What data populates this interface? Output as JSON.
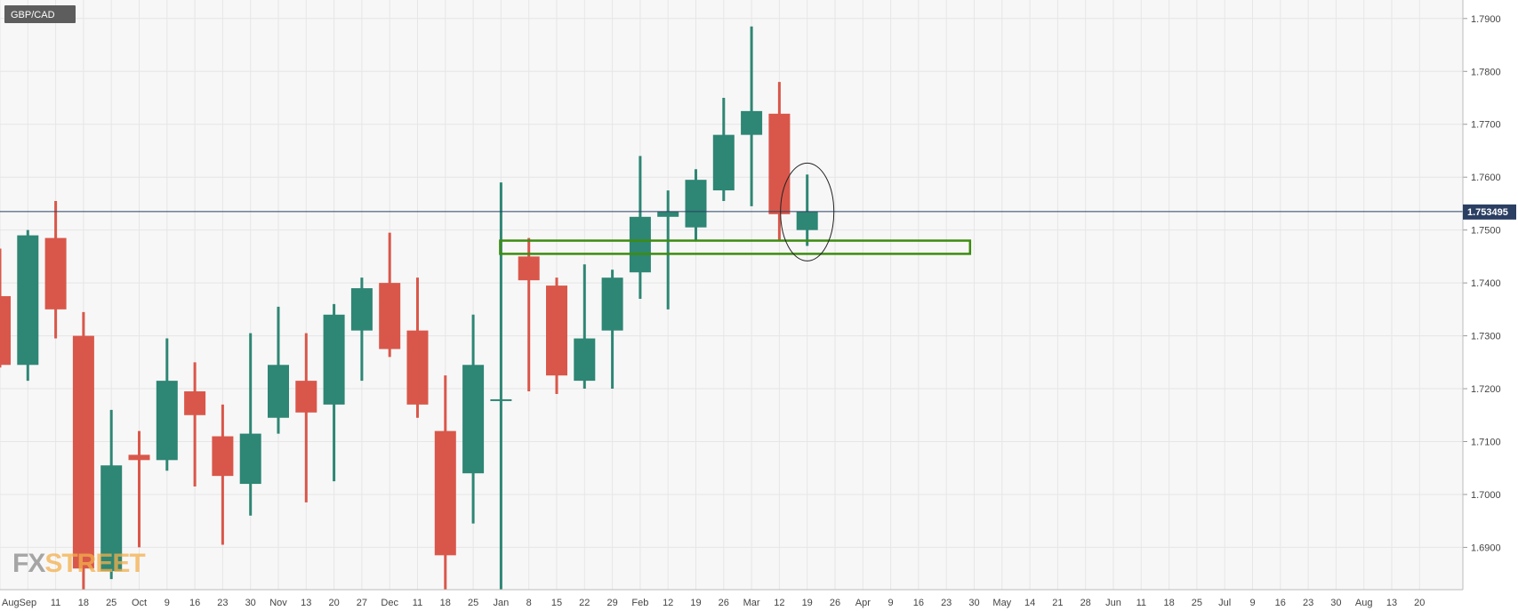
{
  "symbol": "GBP/CAD",
  "current_price_label": "1.753495",
  "logo": {
    "part1": "FX",
    "part2": "STREET"
  },
  "colors": {
    "up": "#2e8674",
    "down": "#d9574a",
    "grid": "#e6e6e6",
    "plot_bg": "#f7f7f7",
    "price_line": "#2b3f63",
    "zone": "#3c8c10",
    "symbol_bg": "#5d5d5d",
    "axis_text": "#444444"
  },
  "chart_data": {
    "type": "candlestick",
    "timeframe": "weekly",
    "ylim": [
      1.682,
      1.7935
    ],
    "y_ticks": [
      "1.6900",
      "1.7000",
      "1.7100",
      "1.7200",
      "1.7300",
      "1.7400",
      "1.7500",
      "1.7600",
      "1.7700",
      "1.7800",
      "1.7900"
    ],
    "x_labels": [
      "Aug",
      "Sep",
      "11",
      "18",
      "25",
      "Oct",
      "9",
      "16",
      "23",
      "30",
      "Nov",
      "13",
      "20",
      "27",
      "Dec",
      "11",
      "18",
      "25",
      "Jan",
      "8",
      "15",
      "22",
      "29",
      "Feb",
      "12",
      "19",
      "26",
      "Mar",
      "12",
      "19",
      "26",
      "Apr",
      "9",
      "16",
      "23",
      "30",
      "May",
      "14",
      "21",
      "28",
      "Jun",
      "11",
      "18",
      "25",
      "Jul",
      "9",
      "16",
      "23",
      "30",
      "Aug",
      "13",
      "20"
    ],
    "candles": [
      {
        "o": 1.7375,
        "h": 1.7465,
        "l": 1.724,
        "c": 1.7245
      },
      {
        "o": 1.7245,
        "h": 1.75,
        "l": 1.7215,
        "c": 1.749
      },
      {
        "o": 1.7485,
        "h": 1.7555,
        "l": 1.7295,
        "c": 1.735
      },
      {
        "o": 1.73,
        "h": 1.7345,
        "l": 1.682,
        "c": 1.686
      },
      {
        "o": 1.6855,
        "h": 1.716,
        "l": 1.684,
        "c": 1.7055
      },
      {
        "o": 1.7075,
        "h": 1.712,
        "l": 1.69,
        "c": 1.7065
      },
      {
        "o": 1.7065,
        "h": 1.7295,
        "l": 1.7045,
        "c": 1.7215
      },
      {
        "o": 1.7195,
        "h": 1.725,
        "l": 1.7015,
        "c": 1.715
      },
      {
        "o": 1.711,
        "h": 1.717,
        "l": 1.6905,
        "c": 1.7035
      },
      {
        "o": 1.702,
        "h": 1.7305,
        "l": 1.696,
        "c": 1.7115
      },
      {
        "o": 1.7145,
        "h": 1.7355,
        "l": 1.7115,
        "c": 1.7245
      },
      {
        "o": 1.7215,
        "h": 1.7305,
        "l": 1.6985,
        "c": 1.7155
      },
      {
        "o": 1.717,
        "h": 1.736,
        "l": 1.7025,
        "c": 1.734
      },
      {
        "o": 1.731,
        "h": 1.741,
        "l": 1.7215,
        "c": 1.739
      },
      {
        "o": 1.74,
        "h": 1.7495,
        "l": 1.726,
        "c": 1.7275
      },
      {
        "o": 1.731,
        "h": 1.741,
        "l": 1.7145,
        "c": 1.717
      },
      {
        "o": 1.712,
        "h": 1.7225,
        "l": 1.682,
        "c": 1.6885
      },
      {
        "o": 1.704,
        "h": 1.734,
        "l": 1.6945,
        "c": 1.7245
      },
      {
        "o": 1.718,
        "h": 1.759,
        "l": 1.682,
        "c": 1.718
      },
      {
        "o": 1.745,
        "h": 1.7485,
        "l": 1.7195,
        "c": 1.7405
      },
      {
        "o": 1.7395,
        "h": 1.741,
        "l": 1.719,
        "c": 1.7225
      },
      {
        "o": 1.7215,
        "h": 1.7435,
        "l": 1.72,
        "c": 1.7295
      },
      {
        "o": 1.731,
        "h": 1.7425,
        "l": 1.72,
        "c": 1.741
      },
      {
        "o": 1.742,
        "h": 1.764,
        "l": 1.737,
        "c": 1.7525
      },
      {
        "o": 1.7525,
        "h": 1.7575,
        "l": 1.735,
        "c": 1.7535
      },
      {
        "o": 1.7505,
        "h": 1.7615,
        "l": 1.748,
        "c": 1.7595
      },
      {
        "o": 1.7575,
        "h": 1.775,
        "l": 1.7555,
        "c": 1.768
      },
      {
        "o": 1.768,
        "h": 1.7885,
        "l": 1.7545,
        "c": 1.7725
      },
      {
        "o": 1.772,
        "h": 1.778,
        "l": 1.748,
        "c": 1.753
      },
      {
        "o": 1.75,
        "h": 1.7605,
        "l": 1.747,
        "c": 1.7535
      }
    ],
    "current_price": 1.753495,
    "support_zone": {
      "low": 1.7455,
      "high": 1.748
    },
    "annotation": "circle around latest weekly candle"
  }
}
